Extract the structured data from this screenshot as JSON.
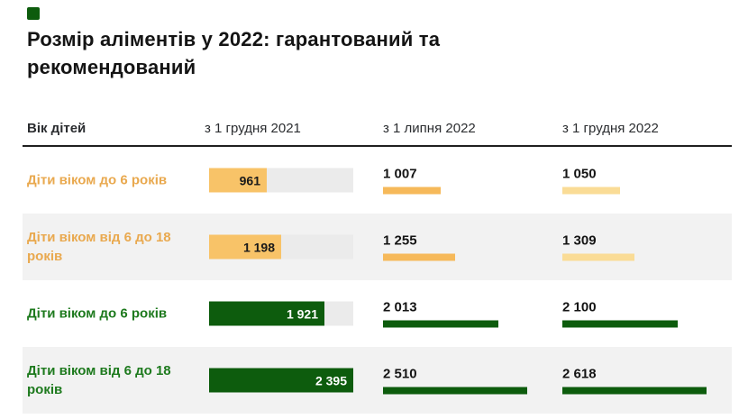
{
  "page": {
    "background": "#ffffff"
  },
  "brand_mark": {
    "shape": "square",
    "color": "#0d5c0d"
  },
  "title": {
    "text": "Розмір аліментів у 2022: гарантований та рекомендований"
  },
  "colors": {
    "orange-label": "#e9a94f",
    "orange-fill": "#f8c368",
    "orange-mid": "#f6b95a",
    "orange-pale": "#fadc96",
    "green-label": "#1e7a1e",
    "green-bar": "#0d5c0d",
    "track": "#ebebeb",
    "stripe": "#f2f2f2"
  },
  "table": {
    "columns": [
      "Вік дітей",
      "з 1 грудня 2021",
      "з 1 липня 2022",
      "з 1 грудня 2022"
    ],
    "rows": [
      {
        "label": "Діти віком до 6 років",
        "group": "orange",
        "cells": [
          {
            "display": "961",
            "value": 961
          },
          {
            "display": "1 007",
            "value": 1007
          },
          {
            "display": "1 050",
            "value": 1050
          }
        ]
      },
      {
        "label": "Діти віком від 6 до 18 років",
        "group": "orange",
        "cells": [
          {
            "display": "1 198",
            "value": 1198
          },
          {
            "display": "1 255",
            "value": 1255
          },
          {
            "display": "1 309",
            "value": 1309
          }
        ]
      },
      {
        "label": "Діти віком до 6 років",
        "group": "green",
        "cells": [
          {
            "display": "1 921",
            "value": 1921
          },
          {
            "display": "2 013",
            "value": 2013
          },
          {
            "display": "2 100",
            "value": 2100
          }
        ]
      },
      {
        "label": "Діти віком від 6 до 18 років",
        "group": "green",
        "cells": [
          {
            "display": "2 395",
            "value": 2395
          },
          {
            "display": "2 510",
            "value": 2510
          },
          {
            "display": "2 618",
            "value": 2618
          }
        ]
      }
    ]
  },
  "chart_data": {
    "type": "bar",
    "title": "Розмір аліментів у 2022: гарантований та рекомендований",
    "categories": [
      "Діти віком до 6 років",
      "Діти віком від 6 до 18 років",
      "Діти віком до 6 років",
      "Діти віком від 6 до 18 років"
    ],
    "category_groups": [
      "orange",
      "orange",
      "green",
      "green"
    ],
    "series": [
      {
        "name": "з 1 грудня 2021",
        "values": [
          961,
          1198,
          1921,
          2395
        ]
      },
      {
        "name": "з 1 липня 2022",
        "values": [
          1007,
          1255,
          2013,
          2510
        ]
      },
      {
        "name": "з 1 грудня 2022",
        "values": [
          1050,
          1309,
          2100,
          2618
        ]
      }
    ],
    "bar_scaling": "each column scaled to its own maximum = full track width",
    "legend_position": "none",
    "grid": false
  }
}
